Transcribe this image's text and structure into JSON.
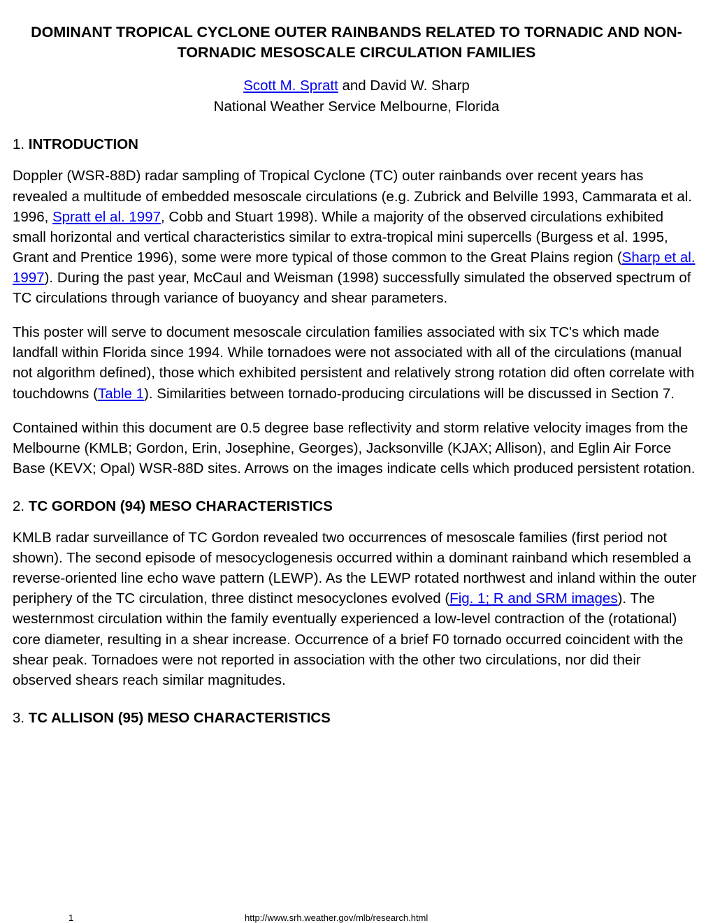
{
  "title": "DOMINANT TROPICAL CYCLONE OUTER RAINBANDS RELATED TO TORNADIC AND NON-TORNADIC MESOSCALE CIRCULATION FAMILIES",
  "authors": {
    "link_author": "Scott M. Spratt",
    "joiner": " and David W. Sharp",
    "affiliation": "National Weather Service Melbourne, Florida"
  },
  "sections": {
    "s1": {
      "num": "1. ",
      "label": "INTRODUCTION"
    },
    "s2": {
      "num": "2. ",
      "label": "TC GORDON (94) MESO CHARACTERISTICS"
    },
    "s3": {
      "num": "3. ",
      "label": "TC ALLISON (95) MESO CHARACTERISTICS"
    }
  },
  "paragraphs": {
    "p1a": "Doppler (WSR-88D) radar sampling of Tropical Cyclone (TC) outer rainbands over recent years has revealed a multitude of embedded mesoscale circulations (e.g. Zubrick and Belville 1993, Cammarata et al. 1996, ",
    "p1_link1": "Spratt el al. 1997",
    "p1b": ", Cobb and Stuart 1998). While a majority of the observed circulations exhibited small horizontal and vertical characteristics similar to extra-tropical mini supercells (Burgess et al. 1995, Grant and Prentice 1996), some were more typical of those common to the Great Plains region (",
    "p1_link2": "Sharp et al. 1997",
    "p1c": "). During the past year, McCaul and Weisman (1998) successfully simulated the observed spectrum of TC circulations through variance of buoyancy and shear parameters.",
    "p2a": "This poster will serve to document mesoscale circulation families associated with six TC's which made landfall within Florida since 1994. While tornadoes were not associated with all of the circulations (manual not algorithm defined), those which exhibited persistent and relatively strong rotation did often correlate with touchdowns (",
    "p2_link1": "Table 1",
    "p2b": "). Similarities between tornado-producing circulations will be discussed in Section 7.",
    "p3": "Contained within this document are 0.5 degree base reflectivity and storm relative velocity images from the Melbourne (KMLB; Gordon, Erin, Josephine, Georges), Jacksonville (KJAX; Allison), and Eglin Air Force Base (KEVX; Opal) WSR-88D sites. Arrows on the images indicate cells which produced persistent rotation.",
    "p4a": "KMLB radar surveillance of TC Gordon revealed two occurrences of mesoscale families (first period not shown). The second episode of mesocyclogenesis occurred within a dominant rainband which resembled a reverse-oriented line echo wave pattern (LEWP). As the LEWP rotated northwest and inland within the outer periphery of the TC circulation, three distinct mesocyclones evolved (",
    "p4_link1": "Fig. 1; R and SRM images",
    "p4b": "). The westernmost circulation within the family eventually experienced a low-level contraction of the (rotational) core diameter, resulting in a shear increase. Occurrence of a brief F0 tornado occurred coincident with the shear peak. Tornadoes were not reported in association with the other two circulations, nor did their observed shears reach similar magnitudes."
  },
  "footer": {
    "page": "1",
    "url": "http://www.srh.weather.gov/mlb/research.html"
  },
  "colors": {
    "link": "#0000ee",
    "text": "#000000",
    "background": "#ffffff"
  },
  "typography": {
    "body_fontsize": 20.5,
    "title_fontsize": 21.5,
    "footer_fontsize": 13,
    "line_height": 1.42
  }
}
